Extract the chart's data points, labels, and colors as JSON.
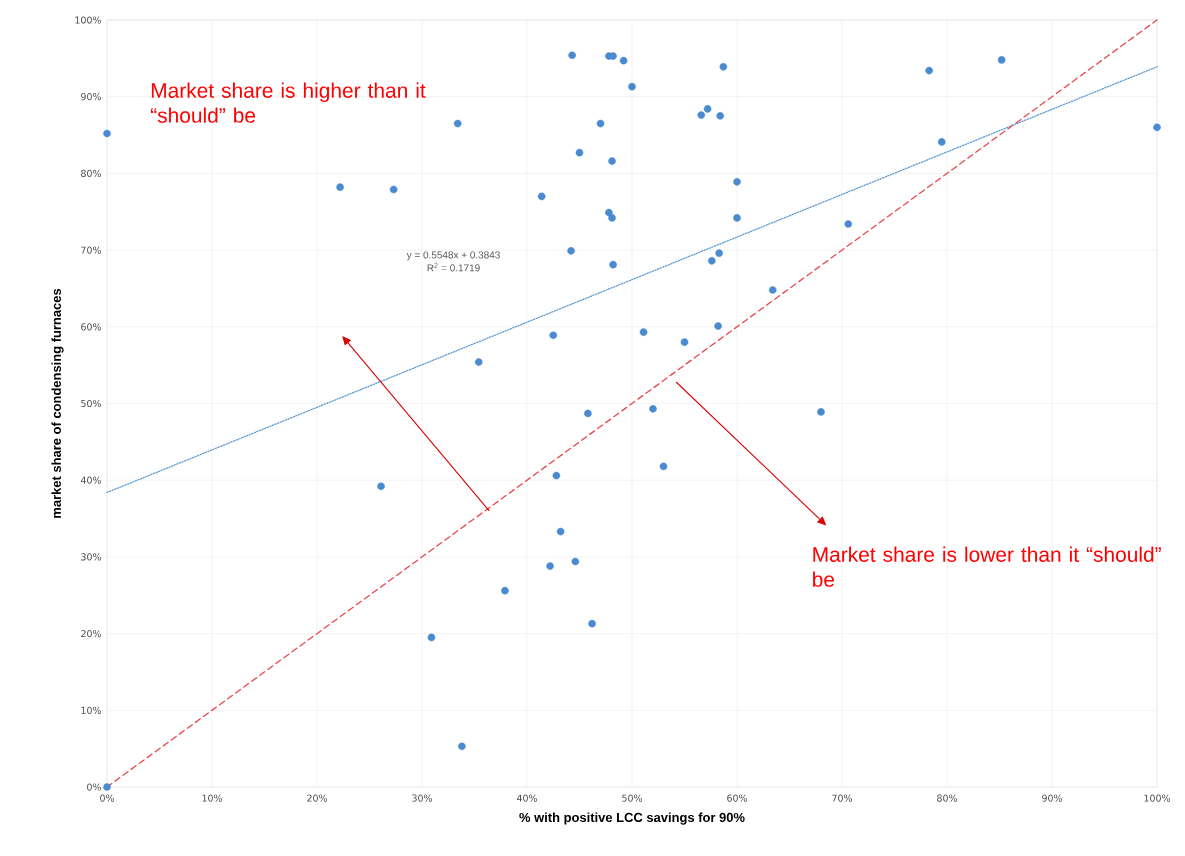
{
  "chart_data": {
    "type": "scatter",
    "xlabel": "% with positive LCC savings for 90%",
    "ylabel": "market share of condensing furnaces",
    "xlim": [
      0,
      100
    ],
    "ylim": [
      0,
      100
    ],
    "xticks": [
      {
        "value": 0,
        "label": "0%"
      },
      {
        "value": 10,
        "label": "10%"
      },
      {
        "value": 20,
        "label": "20%"
      },
      {
        "value": 30,
        "label": "30%"
      },
      {
        "value": 40,
        "label": "40%"
      },
      {
        "value": 50,
        "label": "50%"
      },
      {
        "value": 60,
        "label": "60%"
      },
      {
        "value": 70,
        "label": "70%"
      },
      {
        "value": 80,
        "label": "80%"
      },
      {
        "value": 90,
        "label": "90%"
      },
      {
        "value": 100,
        "label": "100%"
      }
    ],
    "yticks": [
      {
        "value": 0,
        "label": "0%"
      },
      {
        "value": 10,
        "label": "10%"
      },
      {
        "value": 20,
        "label": "20%"
      },
      {
        "value": 30,
        "label": "30%"
      },
      {
        "value": 40,
        "label": "40%"
      },
      {
        "value": 50,
        "label": "50%"
      },
      {
        "value": 60,
        "label": "60%"
      },
      {
        "value": 70,
        "label": "70%"
      },
      {
        "value": 80,
        "label": "80%"
      },
      {
        "value": 90,
        "label": "90%"
      },
      {
        "value": 100,
        "label": "100%"
      }
    ],
    "grid": true,
    "series": [
      {
        "marker": "circle",
        "color": "#4a8ad0",
        "x": [
          0,
          0,
          22.2,
          27.3,
          33.4,
          26.1,
          30.9,
          35.4,
          37.9,
          33.8,
          44.3,
          47.8,
          48.2,
          49.2,
          50.0,
          58.7,
          47.0,
          56.6,
          57.2,
          58.4,
          45.0,
          48.1,
          60.0,
          41.4,
          47.8,
          48.1,
          60.0,
          44.2,
          48.2,
          58.3,
          57.6,
          63.4,
          42.5,
          51.1,
          55.0,
          58.2,
          45.8,
          52.0,
          42.8,
          53.0,
          43.2,
          42.2,
          44.6,
          46.2,
          78.3,
          85.2,
          79.5,
          100,
          70.6,
          68.0
        ],
        "values": [
          0,
          85.2,
          78.2,
          77.9,
          86.5,
          39.2,
          19.5,
          55.4,
          25.6,
          5.3,
          95.4,
          95.3,
          95.3,
          94.7,
          91.3,
          93.9,
          86.5,
          87.6,
          88.4,
          87.5,
          82.7,
          81.6,
          78.9,
          77.0,
          74.9,
          74.2,
          74.2,
          69.9,
          68.1,
          69.6,
          68.6,
          64.8,
          58.9,
          59.3,
          58.0,
          60.1,
          48.7,
          49.3,
          40.6,
          41.8,
          33.3,
          28.8,
          29.4,
          21.3,
          93.4,
          94.8,
          84.1,
          86.0,
          73.4,
          48.9
        ]
      },
      {
        "type": "line",
        "marker": "none",
        "line_style": "dotted",
        "color": "#5b9bd5",
        "x": [
          0,
          100
        ],
        "values": [
          38.4,
          93.9
        ]
      },
      {
        "type": "line",
        "marker": "none",
        "line_style": "dashed",
        "color": "#e8474c",
        "x": [
          0,
          100
        ],
        "values": [
          0,
          100
        ]
      }
    ],
    "annotations": [
      "Market share is higher than it “should” be",
      "Market share is lower than it “should” be",
      "y = 0.5548x + 0.3843",
      "R$^{2}$ = 0.1719"
    ]
  }
}
